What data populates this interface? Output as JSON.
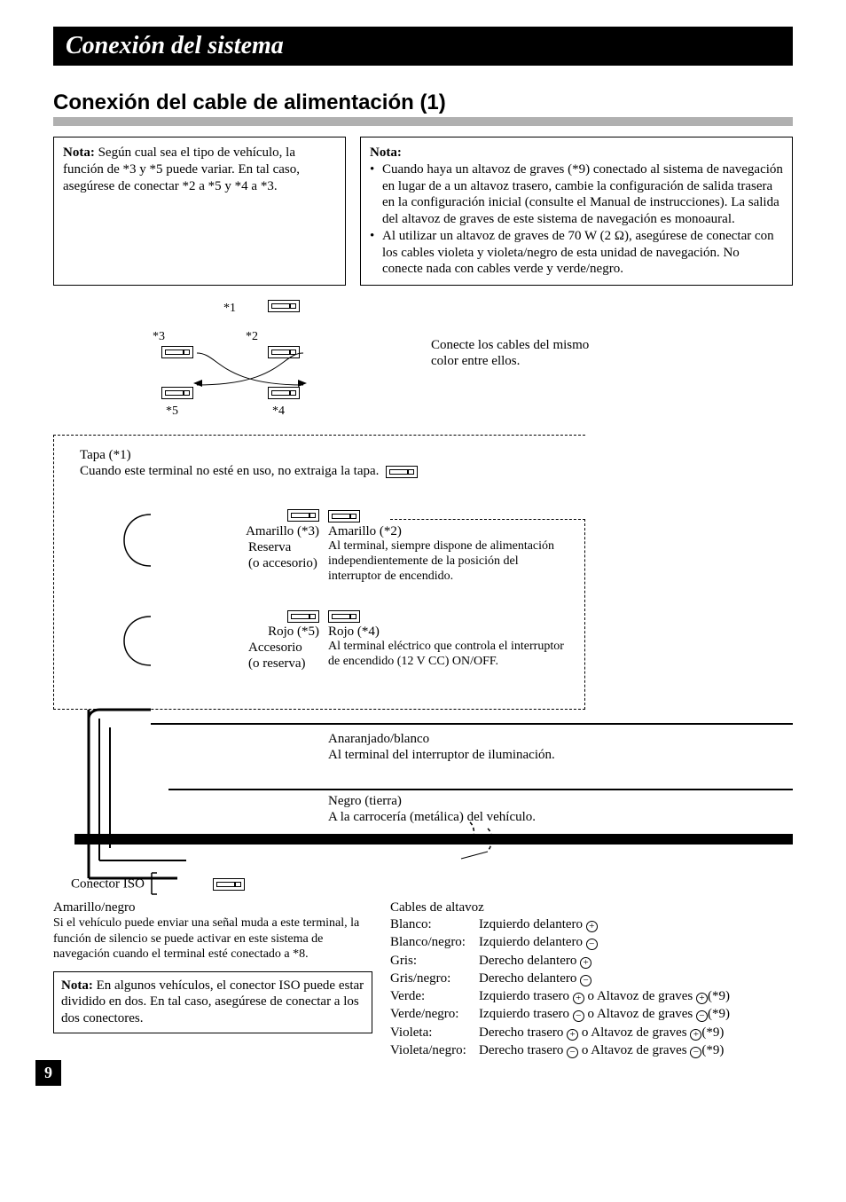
{
  "title_bar": "Conexión del sistema",
  "section_title": "Conexión del cable de alimentación (1)",
  "note1": {
    "label": "Nota:",
    "body": "Según cual sea el tipo de vehículo, la función de *3 y *5 puede variar. En tal caso, asegúrese de conectar *2 a *5 y *4 a *3."
  },
  "note2": {
    "label": "Nota:",
    "b1": "Cuando haya un altavoz de graves (*9) conectado al sistema de navegación en lugar de a un altavoz trasero, cambie la configuración de salida trasera en la configuración inicial (consulte el Manual de instrucciones). La salida del altavoz de graves de este sistema de navegación es monoaural.",
    "b2": "Al utilizar un altavoz de graves de 70 W (2 Ω), asegúrese de conectar con los cables violeta y violeta/negro de esta unidad de navegación. No conecte nada con cables verde y verde/negro."
  },
  "diagram": {
    "s1": "*1",
    "s2": "*2",
    "s3": "*3",
    "s4": "*4",
    "s5": "*5"
  },
  "match_colors": "Conecte los cables del mismo color entre ellos.",
  "tapa": {
    "title": "Tapa (*1)",
    "body": "Cuando este terminal no esté en uso, no extraiga la tapa."
  },
  "amarillo3": {
    "l1": "Amarillo (*3)",
    "l2": "Reserva",
    "l3": "(o accesorio)"
  },
  "amarillo2": {
    "l1": "Amarillo (*2)",
    "body": "Al terminal, siempre dispone de alimentación independientemente de la posición del interruptor de encendido."
  },
  "rojo5": {
    "l1": "Rojo (*5)",
    "l2": "Accesorio",
    "l3": "(o reserva)"
  },
  "rojo4": {
    "l1": "Rojo (*4)",
    "body": "Al terminal eléctrico que controla el interruptor de encendido (12 V CC) ON/OFF."
  },
  "anaranjado": {
    "l1": "Anaranjado/blanco",
    "body": "Al terminal del interruptor de iluminación."
  },
  "negro": {
    "l1": "Negro (tierra)",
    "body": "A la carrocería (metálica) del vehículo."
  },
  "iso_label": "Conector ISO",
  "amarillo_negro": {
    "title": "Amarillo/negro",
    "body": "Si el vehículo puede enviar una señal muda a este terminal, la función de silencio se puede activar en este sistema de navegación cuando el terminal esté conectado a *8."
  },
  "iso_note": {
    "label": "Nota:",
    "body": "En algunos vehículos, el conector ISO puede estar dividido en dos. En tal caso, asegúrese de conectar a los dos conectores."
  },
  "speakers": {
    "title": "Cables de altavoz",
    "rows": [
      {
        "c": "Blanco:",
        "v": "Izquierdo delantero ",
        "sym": "plus",
        "tail": ""
      },
      {
        "c": "Blanco/negro:",
        "v": "Izquierdo delantero ",
        "sym": "minus",
        "tail": ""
      },
      {
        "c": "Gris:",
        "v": "Derecho delantero ",
        "sym": "plus",
        "tail": ""
      },
      {
        "c": "Gris/negro:",
        "v": "Derecho delantero ",
        "sym": "minus",
        "tail": ""
      },
      {
        "c": "Verde:",
        "v": "Izquierdo trasero ",
        "sym": "plus",
        "tail": " o Altavoz de graves ",
        "sym2": "plus",
        "tail2": "(*9)"
      },
      {
        "c": "Verde/negro:",
        "v": "Izquierdo trasero ",
        "sym": "minus",
        "tail": " o Altavoz de graves ",
        "sym2": "minus",
        "tail2": "(*9)"
      },
      {
        "c": "Violeta:",
        "v": "Derecho trasero ",
        "sym": "plus",
        "tail": " o Altavoz de graves ",
        "sym2": "plus",
        "tail2": "(*9)"
      },
      {
        "c": "Violeta/negro:",
        "v": "Derecho trasero ",
        "sym": "minus",
        "tail": " o Altavoz de graves ",
        "sym2": "minus",
        "tail2": "(*9)"
      }
    ]
  },
  "page_number": "9"
}
